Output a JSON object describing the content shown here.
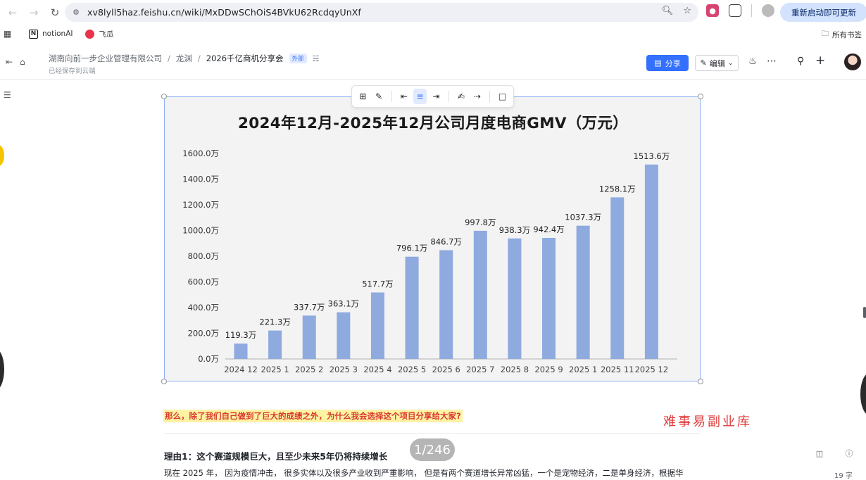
{
  "browser": {
    "url": "xv8lyll5haz.feishu.cn/wiki/MxDDwSChOiS4BVkU62RcdqyUnXf",
    "restart_label": "重新启动即可更新",
    "bookmarks": [
      {
        "label": "notionAI",
        "icon": "notion-icon"
      },
      {
        "label": "飞瓜",
        "icon": "feigua-icon"
      }
    ],
    "all_bookmarks_label": "所有书签"
  },
  "header": {
    "breadcrumbs": [
      "湖南向前一步企业管理有限公司",
      "龙渊",
      "2026千亿商机分享会"
    ],
    "external_tag": "外部",
    "saved_note": "已经保存到云端",
    "share_label": "分享",
    "edit_label": "编辑"
  },
  "chart_data": {
    "type": "bar",
    "title": "2024年12月-2025年12月公司月度电商GMV（万元）",
    "categories": [
      "2024 12",
      "2025 1",
      "2025 2",
      "2025 3",
      "2025 4",
      "2025 5",
      "2025 6",
      "2025 7",
      "2025 8",
      "2025 9",
      "2025 1",
      "2025 11",
      "2025 12"
    ],
    "values": [
      119.3,
      221.3,
      337.7,
      363.1,
      517.7,
      796.1,
      846.7,
      997.8,
      938.3,
      942.4,
      1037.3,
      1258.1,
      1513.6
    ],
    "value_labels": [
      "119.3万",
      "221.3万",
      "337.7万",
      "363.1万",
      "517.7万",
      "796.1万",
      "846.7万",
      "997.8万",
      "938.3万",
      "942.4万",
      "1037.3万",
      "1258.1万",
      "1513.6万"
    ],
    "yticks": [
      0,
      200,
      400,
      600,
      800,
      1000,
      1200,
      1400,
      1600
    ],
    "ytick_labels": [
      "0.0万",
      "200.0万",
      "400.0万",
      "600.0万",
      "800.0万",
      "1000.0万",
      "1200.0万",
      "1400.0万",
      "1600.0万"
    ],
    "ylim": [
      0,
      1600
    ],
    "bar_color": "#8eaadf",
    "grid": false
  },
  "content": {
    "highlight": "那么，除了我们自己做到了巨大的成绩之外，为什么我会选择这个项目分享给大家?",
    "watermark": "难事易副业库",
    "reason_heading": "理由1：这个赛道规模巨大，且至少未来5年仍将持续增长",
    "paragraph": "现在 2025 年， 因为疫情冲击， 很多实体以及很多产业收到严重影响， 但是有两个赛道增长异常凶猛，一个是宠物经济，二是单身经济，根据华",
    "page_indicator": "1/246",
    "word_count": "19 字"
  }
}
